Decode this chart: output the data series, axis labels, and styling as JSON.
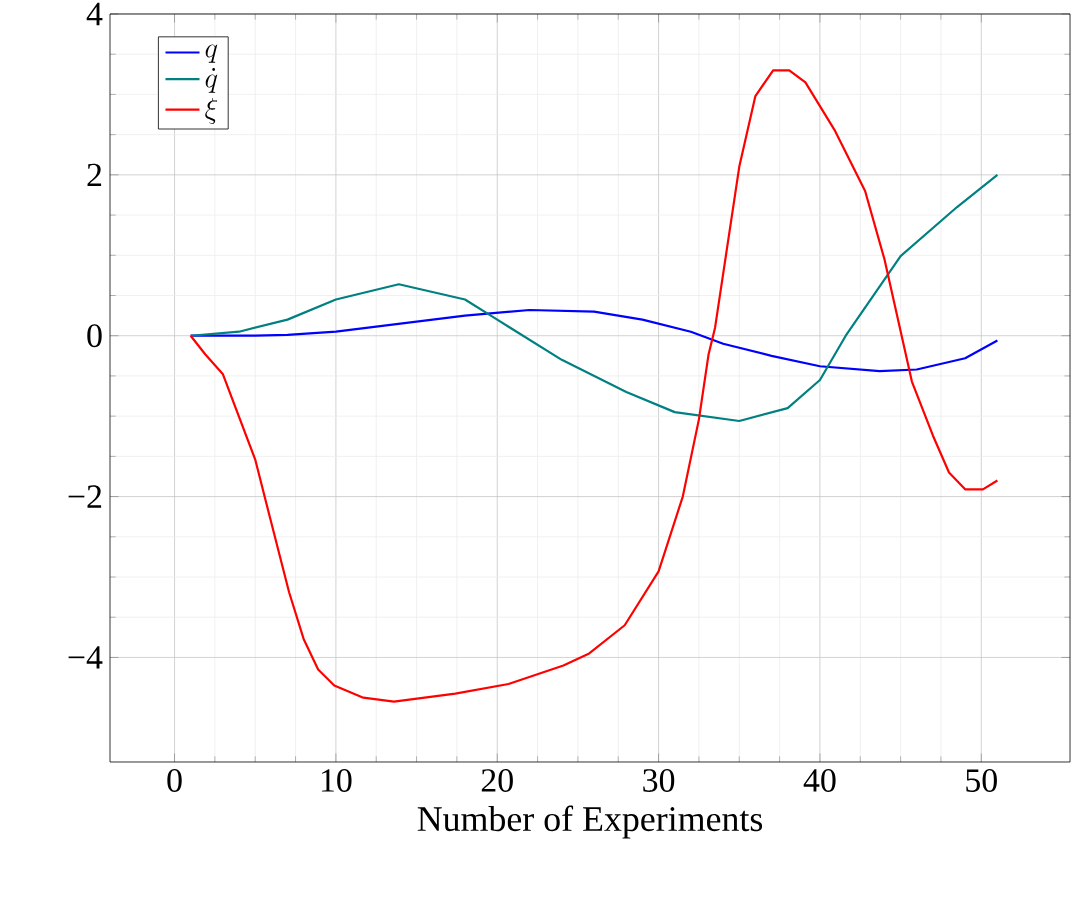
{
  "chart_data": {
    "type": "line",
    "xlabel": "Number of Experiments",
    "xlim": [
      -4,
      55.5
    ],
    "ylim": [
      -5.3,
      4
    ],
    "xticks": [
      0,
      10,
      20,
      30,
      40,
      50
    ],
    "yticks": [
      {
        "value": -4,
        "label": "−4"
      },
      {
        "value": -2,
        "label": "−2"
      },
      0,
      2,
      4
    ],
    "grid": true,
    "legend": "top left",
    "marker": "none",
    "line_style": "solid",
    "series": [
      {
        "name": "q",
        "color": "#0000ff",
        "x": [
          1,
          3,
          5,
          7,
          10,
          14,
          18,
          22,
          26,
          29,
          32,
          34,
          37,
          40,
          43.7,
          46,
          49,
          51
        ],
        "values": [
          0,
          0,
          0,
          0.01,
          0.05,
          0.15,
          0.25,
          0.32,
          0.3,
          0.2,
          0.05,
          -0.1,
          -0.25,
          -0.38,
          -0.44,
          -0.42,
          -0.28,
          -0.06
        ]
      },
      {
        "name": "\\dot{q}",
        "color": "#008080",
        "x": [
          1,
          4,
          7,
          10,
          13.9,
          18,
          20,
          24,
          28,
          31,
          35,
          38,
          40,
          41.6,
          45,
          48.5,
          51
        ],
        "values": [
          0,
          0.05,
          0.2,
          0.45,
          0.64,
          0.45,
          0.2,
          -0.3,
          -0.7,
          -0.95,
          -1.06,
          -0.9,
          -0.55,
          0,
          0.99,
          1.6,
          2.0
        ]
      },
      {
        "name": "\\xi",
        "color": "#ff0000",
        "x": [
          1,
          1.9,
          3,
          5,
          5.8,
          7.1,
          8,
          8.9,
          9.9,
          11.7,
          13.6,
          17.4,
          20.7,
          24.1,
          25.7,
          27.9,
          30,
          31.5,
          32.5,
          33.1,
          33.5,
          35,
          36,
          37.1,
          38.1,
          39.1,
          40.9,
          42.8,
          44,
          45.7,
          47,
          48,
          49,
          50.1,
          51
        ],
        "values": [
          0,
          -0.23,
          -0.48,
          -1.54,
          -2.17,
          -3.19,
          -3.77,
          -4.15,
          -4.35,
          -4.5,
          -4.55,
          -4.45,
          -4.33,
          -4.1,
          -3.95,
          -3.6,
          -2.93,
          -2.0,
          -1.04,
          -0.23,
          0.1,
          2.1,
          2.98,
          3.3,
          3.3,
          3.15,
          2.56,
          1.8,
          0.95,
          -0.57,
          -1.24,
          -1.7,
          -1.91,
          -1.91,
          -1.8
        ]
      }
    ]
  }
}
